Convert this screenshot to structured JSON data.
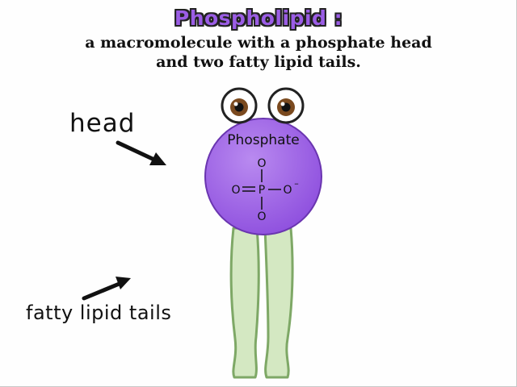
{
  "title": "Phospholipid :",
  "subtitle_line1": "a macromolecule with a phosphate head",
  "subtitle_line2": "and two fatty lipid tails.",
  "labels": {
    "head": "head",
    "tails": "fatty lipid tails",
    "phosphate": "Phosphate"
  },
  "formula": {
    "top_o": "O",
    "left_o": "O",
    "p": "P",
    "right_o": "O",
    "charge": "–",
    "bottom_o": "O"
  },
  "colors": {
    "title": "#9b5de5",
    "head_fill": "#9b5de5",
    "tail_fill": "#d4e8c2",
    "tail_stroke": "#7ea866"
  }
}
